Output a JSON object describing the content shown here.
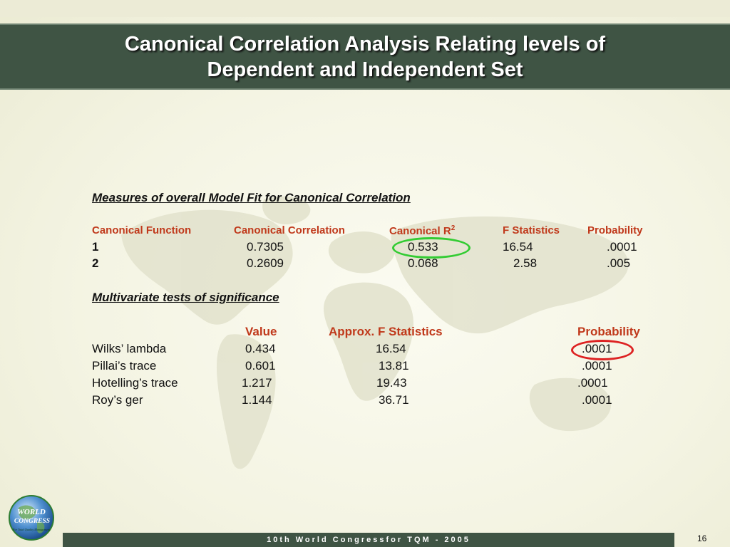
{
  "slide": {
    "title_line1": "Canonical Correlation Analysis Relating levels of",
    "title_line2": "Dependent and Independent Set",
    "page_number": "16",
    "footer": "10th World Congressfor TQM - 2005",
    "logo_text_1": "WORLD",
    "logo_text_2": "CONGRESS",
    "logo_text_3": "For Total Quality Management"
  },
  "model_fit": {
    "heading": "Measures of overall Model Fit for Canonical Correlation",
    "columns": {
      "function": "Canonical Function",
      "correlation": "Canonical Correlation",
      "r2_base": "Canonical R",
      "r2_sup": "2",
      "f_stat": "F Statistics",
      "probability": "Probability"
    },
    "rows": [
      {
        "function": "1",
        "correlation": "0.7305",
        "r2": "0.533",
        "f": "16.54",
        "p": ".0001"
      },
      {
        "function": "2",
        "correlation": "0.2609",
        "r2": "0.068",
        "f": "2.58",
        "p": ".005"
      }
    ]
  },
  "multivariate": {
    "heading": "Multivariate tests of significance",
    "columns": {
      "value": "Value",
      "f": "Approx. F Statistics",
      "probability": "Probability"
    },
    "rows": [
      {
        "test": "Wilks’ lambda",
        "value": "0.434",
        "f": "16.54",
        "p": ".0001"
      },
      {
        "test": "Pillai’s trace",
        "value": "0.601",
        "f": "13.81",
        "p": ".0001"
      },
      {
        "test": "Hotelling’s trace",
        "value": "1.217",
        "f": "19.43",
        "p": ".0001"
      },
      {
        "test": "Roy’s ger",
        "value": "1.144",
        "f": "36.71",
        "p": ".0001"
      }
    ]
  },
  "colors": {
    "title_bar": "#3f5444",
    "header_text": "#c0391b",
    "highlight_green": "#33cc33",
    "highlight_red": "#dd2222"
  }
}
